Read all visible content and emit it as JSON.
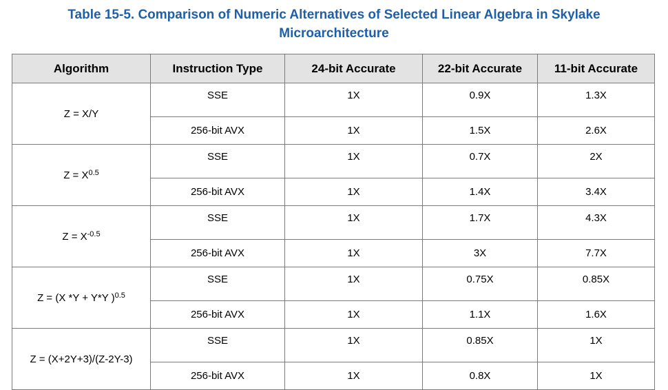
{
  "caption": {
    "line1": "Table 15-5.  Comparison of Numeric Alternatives of Selected Linear Algebra in Skylake",
    "line2": "Microarchitecture"
  },
  "headers": [
    "Algorithm",
    "Instruction Type",
    "24-bit Accurate",
    "22-bit Accurate",
    "11-bit Accurate"
  ],
  "groups": [
    {
      "algorithm": {
        "base": "Z = X/Y",
        "sup": ""
      },
      "rows": [
        {
          "type": "SSE",
          "b24": "1X",
          "b22": "0.9X",
          "b11": "1.3X"
        },
        {
          "type": "256-bit AVX",
          "b24": "1X",
          "b22": "1.5X",
          "b11": "2.6X"
        }
      ]
    },
    {
      "algorithm": {
        "base": "Z = X",
        "sup": "0.5"
      },
      "rows": [
        {
          "type": "SSE",
          "b24": "1X",
          "b22": "0.7X",
          "b11": "2X"
        },
        {
          "type": "256-bit AVX",
          "b24": "1X",
          "b22": "1.4X",
          "b11": "3.4X"
        }
      ]
    },
    {
      "algorithm": {
        "base": "Z = X",
        "sup": "-0.5"
      },
      "rows": [
        {
          "type": "SSE",
          "b24": "1X",
          "b22": "1.7X",
          "b11": "4.3X"
        },
        {
          "type": "256-bit AVX",
          "b24": "1X",
          "b22": "3X",
          "b11": "7.7X"
        }
      ]
    },
    {
      "algorithm": {
        "base": "Z = (X *Y + Y*Y )",
        "sup": "0.5"
      },
      "rows": [
        {
          "type": "SSE",
          "b24": "1X",
          "b22": "0.75X",
          "b11": "0.85X"
        },
        {
          "type": "256-bit AVX",
          "b24": "1X",
          "b22": "1.1X",
          "b11": "1.6X"
        }
      ]
    },
    {
      "algorithm": {
        "base": "Z = (X+2Y+3)/(Z-2Y-3)",
        "sup": ""
      },
      "rows": [
        {
          "type": "SSE",
          "b24": "1X",
          "b22": "0.85X",
          "b11": "1X"
        },
        {
          "type": "256-bit AVX",
          "b24": "1X",
          "b22": "0.8X",
          "b11": "1X"
        }
      ]
    }
  ]
}
